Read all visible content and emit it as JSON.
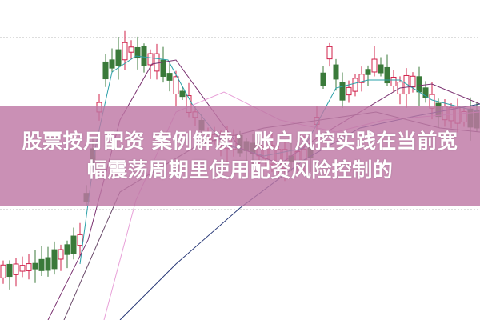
{
  "title": {
    "line1": "股票按月配资 案例解读：账户风控实践在当前宽",
    "line2": "幅震荡周期里使用配资风险控制的"
  },
  "colors": {
    "up_candle": "#d0204a",
    "down_candle": "#3a7a3a",
    "banner": "#be78a5",
    "ma_short": "#2aa0a8",
    "ma_mid": "#7a3070",
    "ma_long": "#2a3a78",
    "ma_extra": "#e8a0d8"
  }
}
